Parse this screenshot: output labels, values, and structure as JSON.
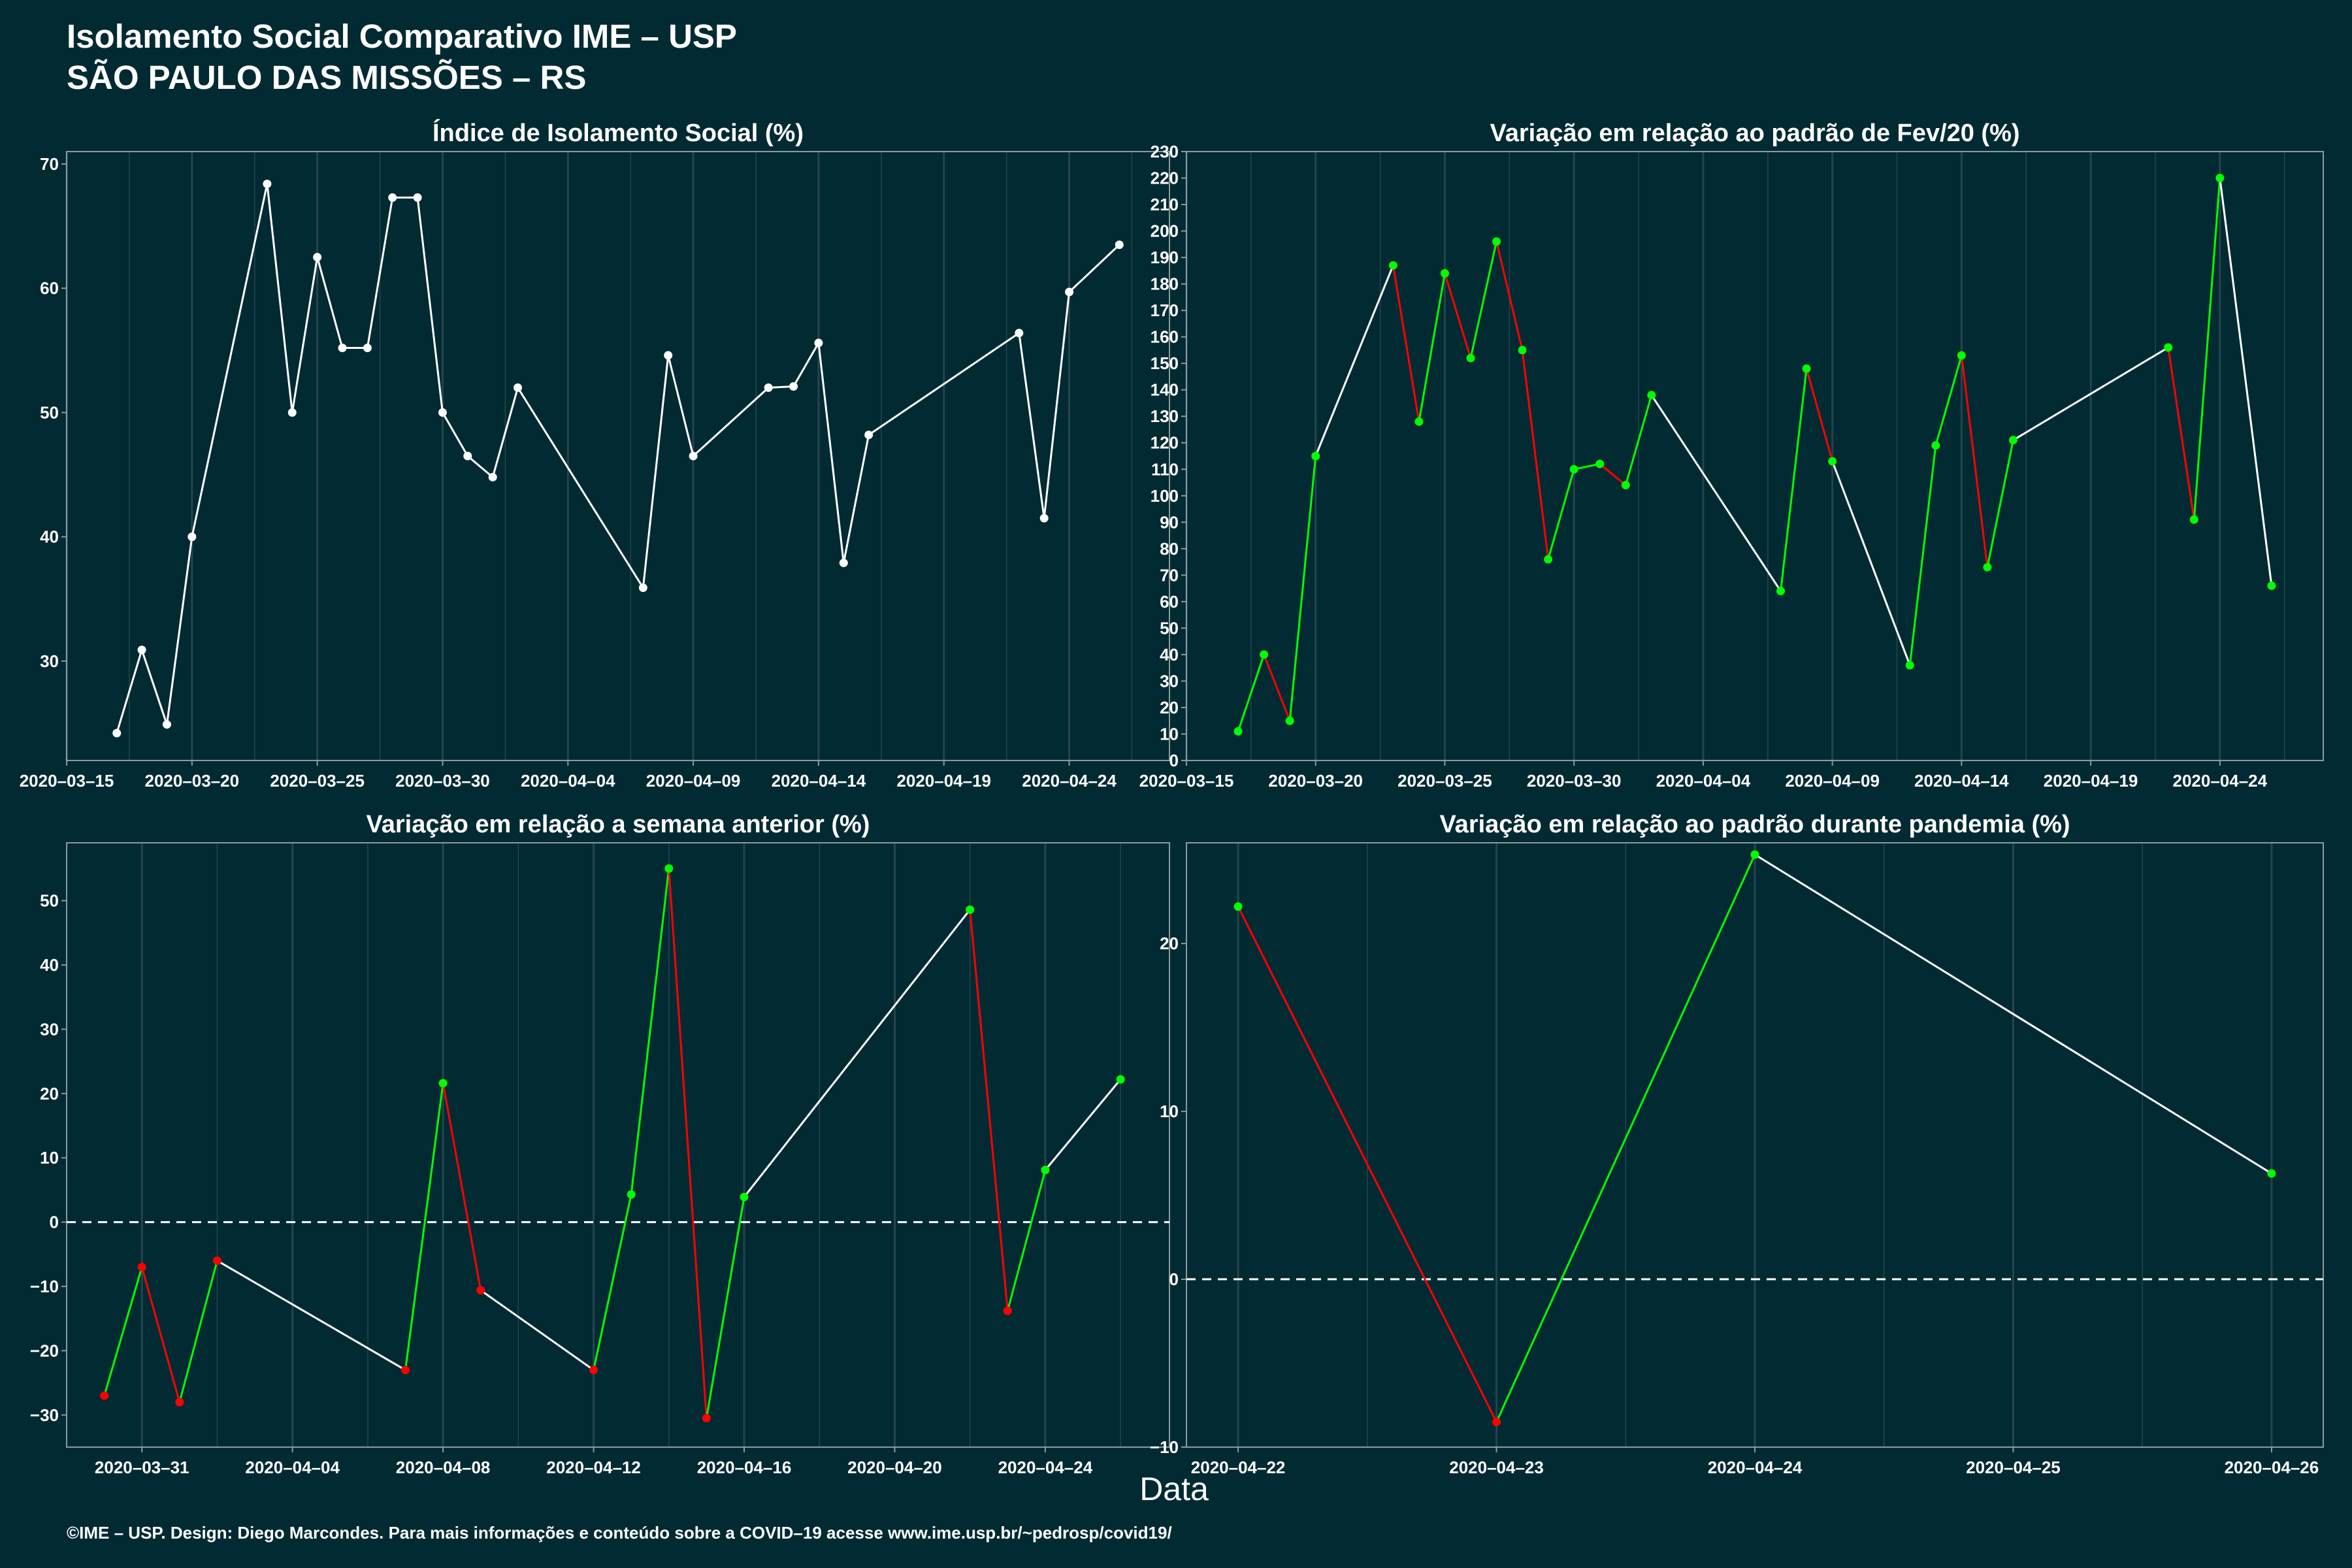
{
  "header": {
    "title_line1": "Isolamento Social Comparativo IME – USP",
    "title_line2": "SÃO PAULO DAS MISSÕES – RS"
  },
  "x_axis_label": "Data",
  "footer": "©IME – USP. Design: Diego Marcondes. Para mais informações e conteúdo sobre a COVID–19 acesse www.ime.usp.br/~pedrosp/covid19/",
  "colors": {
    "background": "#022a33",
    "line": "#ffffff",
    "up": "#00ff00",
    "down": "#ff0000",
    "grid": "#26444d",
    "frame": "#8a9ca0"
  },
  "chart_data": [
    {
      "type": "line",
      "title": "Índice de Isolamento Social (%)",
      "xlabel": "Data",
      "ylabel": "",
      "x_type": "date",
      "xlim": [
        "2020-03-15",
        "2020-04-28"
      ],
      "ylim": [
        22,
        71
      ],
      "x_ticks": [
        "2020-03-15",
        "2020-03-20",
        "2020-03-25",
        "2020-03-30",
        "2020-04-04",
        "2020-04-09",
        "2020-04-14",
        "2020-04-19",
        "2020-04-24"
      ],
      "y_ticks": [
        30,
        40,
        50,
        60,
        70
      ],
      "grid": true,
      "point_color_mode": "none",
      "segment_color_mode": "none",
      "x": [
        "2020-03-17",
        "2020-03-18",
        "2020-03-19",
        "2020-03-20",
        "2020-03-23",
        "2020-03-24",
        "2020-03-25",
        "2020-03-26",
        "2020-03-27",
        "2020-03-28",
        "2020-03-29",
        "2020-03-30",
        "2020-03-31",
        "2020-04-01",
        "2020-04-02",
        "2020-04-07",
        "2020-04-08",
        "2020-04-09",
        "2020-04-12",
        "2020-04-13",
        "2020-04-14",
        "2020-04-15",
        "2020-04-16",
        "2020-04-22",
        "2020-04-23",
        "2020-04-24",
        "2020-04-26"
      ],
      "y": [
        24.2,
        30.9,
        24.9,
        40.0,
        68.4,
        50.0,
        62.5,
        55.2,
        55.2,
        67.3,
        67.3,
        50.0,
        46.5,
        44.8,
        52.0,
        35.9,
        54.6,
        46.5,
        52.0,
        52.1,
        55.6,
        37.9,
        48.2,
        56.4,
        41.5,
        59.7,
        63.5
      ]
    },
    {
      "type": "line",
      "title": "Variação em relação ao padrão de Fev/20 (%)",
      "xlabel": "Data",
      "ylabel": "",
      "x_type": "date",
      "xlim": [
        "2020-03-15",
        "2020-04-28"
      ],
      "ylim": [
        0,
        230
      ],
      "x_ticks": [
        "2020-03-15",
        "2020-03-20",
        "2020-03-25",
        "2020-03-30",
        "2020-04-04",
        "2020-04-09",
        "2020-04-14",
        "2020-04-19",
        "2020-04-24"
      ],
      "y_ticks": [
        0,
        10,
        20,
        30,
        40,
        50,
        60,
        70,
        80,
        90,
        100,
        110,
        120,
        130,
        140,
        150,
        160,
        170,
        180,
        190,
        200,
        210,
        220,
        230
      ],
      "grid": true,
      "point_color_mode": "sign",
      "segment_color_mode": "consecutive_day",
      "x": [
        "2020-03-17",
        "2020-03-18",
        "2020-03-19",
        "2020-03-20",
        "2020-03-23",
        "2020-03-24",
        "2020-03-25",
        "2020-03-26",
        "2020-03-27",
        "2020-03-28",
        "2020-03-29",
        "2020-03-30",
        "2020-03-31",
        "2020-04-01",
        "2020-04-02",
        "2020-04-07",
        "2020-04-08",
        "2020-04-09",
        "2020-04-12",
        "2020-04-13",
        "2020-04-14",
        "2020-04-15",
        "2020-04-16",
        "2020-04-22",
        "2020-04-23",
        "2020-04-24",
        "2020-04-26"
      ],
      "y": [
        11,
        40,
        15,
        115,
        187,
        128,
        184,
        152,
        196,
        155,
        76,
        110,
        112,
        104,
        138,
        64,
        148,
        113,
        36,
        119,
        153,
        73,
        121,
        156,
        91,
        220,
        66
      ]
    },
    {
      "type": "line",
      "title": "Variação em relação a semana anterior (%)",
      "xlabel": "Data",
      "ylabel": "",
      "x_type": "date",
      "xlim": [
        "2020-03-29",
        "2020-04-27.3"
      ],
      "ylim": [
        -35,
        59
      ],
      "x_ticks": [
        "2020-03-31",
        "2020-04-04",
        "2020-04-08",
        "2020-04-12",
        "2020-04-16",
        "2020-04-20",
        "2020-04-24"
      ],
      "y_ticks": [
        -30,
        -20,
        -10,
        0,
        10,
        20,
        30,
        40,
        50
      ],
      "zero_line": true,
      "grid": true,
      "point_color_mode": "sign",
      "segment_color_mode": "consecutive_day",
      "x": [
        "2020-03-30",
        "2020-03-31",
        "2020-04-01",
        "2020-04-02",
        "2020-04-07",
        "2020-04-08",
        "2020-04-09",
        "2020-04-12",
        "2020-04-13",
        "2020-04-14",
        "2020-04-15",
        "2020-04-16",
        "2020-04-22",
        "2020-04-23",
        "2020-04-24",
        "2020-04-26"
      ],
      "y": [
        -27,
        -7,
        -28,
        -6,
        -23,
        21.6,
        -10.6,
        -23,
        4.3,
        55,
        -30.5,
        3.9,
        48.6,
        -13.8,
        8.1,
        22.2
      ]
    },
    {
      "type": "line",
      "title": "Variação em relação ao padrão durante pandemia (%)",
      "xlabel": "Data",
      "ylabel": "",
      "x_type": "date",
      "xlim": [
        "2020-04-21.8",
        "2020-04-26.2"
      ],
      "ylim": [
        -10,
        26
      ],
      "x_ticks": [
        "2020-04-22",
        "2020-04-23",
        "2020-04-24",
        "2020-04-25",
        "2020-04-26"
      ],
      "y_ticks": [
        -10,
        0,
        10,
        20
      ],
      "zero_line": true,
      "grid": true,
      "point_color_mode": "sign",
      "segment_color_mode": "consecutive_day",
      "x": [
        "2020-04-22",
        "2020-04-23",
        "2020-04-24",
        "2020-04-26"
      ],
      "y": [
        22.2,
        -8.5,
        25.3,
        6.3
      ]
    }
  ]
}
